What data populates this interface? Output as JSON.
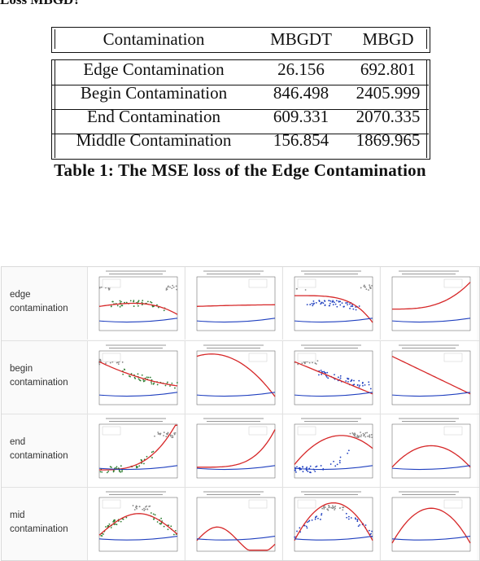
{
  "top_fragment": "Loss MBGD?",
  "table": {
    "headers": [
      "Contamination",
      "MBGDT",
      "MBGD"
    ],
    "rows": [
      [
        "Edge Contamination",
        "26.156",
        "692.801"
      ],
      [
        "Begin Contamination",
        "846.498",
        "2405.999"
      ],
      [
        "End Contamination",
        "609.331",
        "2070.335"
      ],
      [
        "Middle Contamination",
        "156.854",
        "1869.965"
      ]
    ]
  },
  "caption": "Table 1: The MSE loss of the Edge Contamination",
  "figure_rows": [
    {
      "label_line1": "edge",
      "label_line2": "contamination"
    },
    {
      "label_line1": "begin",
      "label_line2": "contamination"
    },
    {
      "label_line1": "end",
      "label_line2": "contamination"
    },
    {
      "label_line1": "mid",
      "label_line2": "contamination"
    }
  ],
  "colors": {
    "fit_red": "#d62728",
    "fit_blue": "#1f3fbf",
    "clean_green": "#2e7d32",
    "contam_grey": "#888888"
  }
}
